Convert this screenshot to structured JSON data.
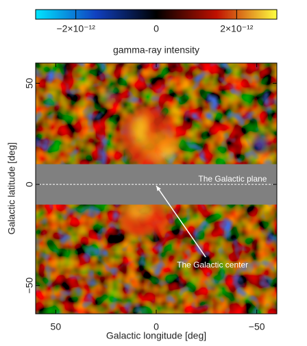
{
  "chart_data": {
    "type": "image",
    "xlabel": "Galactic longitude [deg]",
    "ylabel": "Galactic latitude [deg]",
    "xlim": [
      60,
      -60
    ],
    "ylim": [
      -64,
      60
    ],
    "xticks": [
      50,
      0,
      {
        "value": -50,
        "label": "−50"
      }
    ],
    "yticks": [
      {
        "value": -50,
        "label": "−50"
      },
      0,
      50
    ],
    "mask_band": [
      -10,
      10
    ],
    "colorbar": {
      "label": "gamma-ray intensity",
      "lim": [
        -3e-12,
        3e-12
      ],
      "colors": [
        "#00e5ff",
        "#1040c0",
        "#000000",
        "#c01000",
        "#ffff40"
      ],
      "ticks": [
        {
          "value": -2e-12,
          "label": "−2×10⁻¹²"
        },
        {
          "value": 0,
          "label": "0"
        },
        {
          "value": 2e-12,
          "label": "2×10⁻¹²"
        }
      ]
    },
    "annotations": [
      {
        "text": "The Galactic plane",
        "x": -38,
        "y": 2.5
      },
      {
        "text": "The Galactic center",
        "x": -28,
        "y": -40,
        "arrow_to": [
          0,
          0
        ]
      }
    ]
  }
}
